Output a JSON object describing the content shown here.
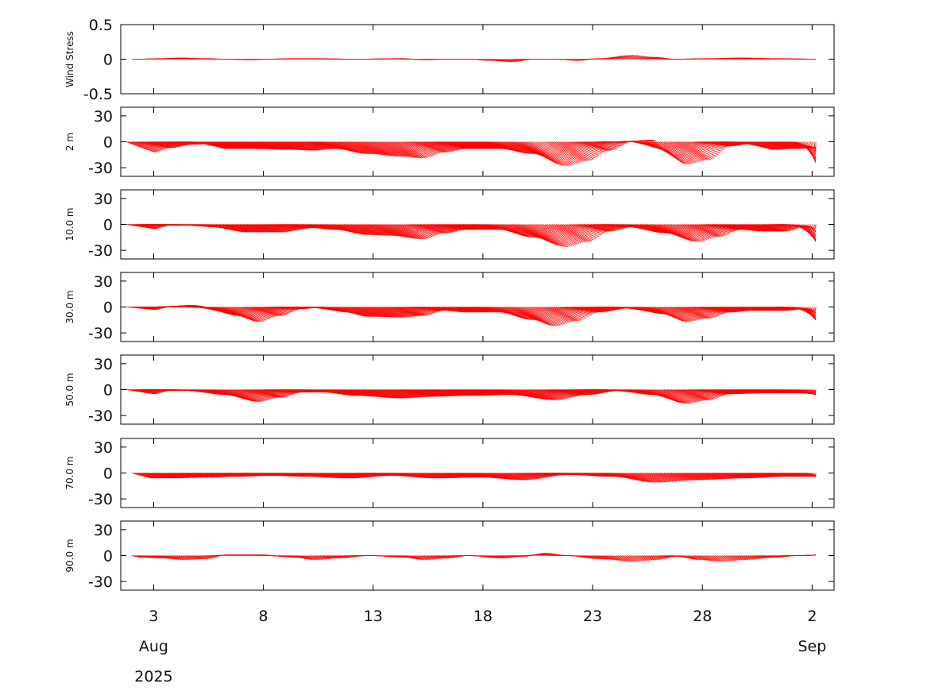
{
  "chart_data": {
    "type": "line",
    "subtype": "stick-vector-timeseries",
    "title": "",
    "series_color": "#ff0000",
    "x_axis": {
      "range": [
        "2025-08-01T12:00",
        "2025-09-03T00:00"
      ],
      "ticks": [
        {
          "date": "2025-08-03",
          "label": "3"
        },
        {
          "date": "2025-08-08",
          "label": "8"
        },
        {
          "date": "2025-08-13",
          "label": "13"
        },
        {
          "date": "2025-08-18",
          "label": "18"
        },
        {
          "date": "2025-08-23",
          "label": "23"
        },
        {
          "date": "2025-08-28",
          "label": "28"
        },
        {
          "date": "2025-09-02",
          "label": "2"
        }
      ],
      "month_labels": [
        {
          "date": "2025-08-03",
          "label": "Aug"
        },
        {
          "date": "2025-09-02",
          "label": "Sep"
        }
      ],
      "year_label": {
        "date": "2025-08-03",
        "label": "2025"
      }
    },
    "panels": [
      {
        "ylabel": "Wind Stress",
        "ylim": [
          -0.5,
          0.5
        ],
        "yticks": [
          {
            "v": 0.5,
            "label": "0.5"
          },
          {
            "v": 0,
            "label": "0"
          },
          {
            "v": -0.5,
            "label": "-0.5"
          }
        ],
        "t_start": "2025-08-02T00:00",
        "t_end": "2025-09-02T04:00",
        "tip_y": [
          [
            "2025-08-02T00:00",
            0
          ],
          [
            "2025-08-03T00:00",
            0.01
          ],
          [
            "2025-08-04T00:00",
            0.02
          ],
          [
            "2025-08-05T00:00",
            0.01
          ],
          [
            "2025-08-06T00:00",
            0.0
          ],
          [
            "2025-08-07T00:00",
            -0.01
          ],
          [
            "2025-08-08T00:00",
            0.0
          ],
          [
            "2025-08-09T00:00",
            0.01
          ],
          [
            "2025-08-10T00:00",
            0.01
          ],
          [
            "2025-08-12T00:00",
            0.0
          ],
          [
            "2025-08-14T00:00",
            0.01
          ],
          [
            "2025-08-15T00:00",
            -0.01
          ],
          [
            "2025-08-16T00:00",
            0.0
          ],
          [
            "2025-08-17T00:00",
            0.0
          ],
          [
            "2025-08-18T00:00",
            -0.02
          ],
          [
            "2025-08-19T00:00",
            -0.04
          ],
          [
            "2025-08-20T00:00",
            0.0
          ],
          [
            "2025-08-21T00:00",
            0.0
          ],
          [
            "2025-08-22T00:00",
            -0.02
          ],
          [
            "2025-08-23T00:00",
            0.01
          ],
          [
            "2025-08-24T12:00",
            0.06
          ],
          [
            "2025-08-25T12:00",
            0.03
          ],
          [
            "2025-08-26T12:00",
            0.0
          ],
          [
            "2025-08-28T00:00",
            0.01
          ],
          [
            "2025-08-29T12:00",
            0.02
          ],
          [
            "2025-08-31T00:00",
            0.01
          ],
          [
            "2025-09-02T04:00",
            0.0
          ]
        ],
        "shift_days": 0.35
      },
      {
        "ylabel": "2 m",
        "ylim": [
          -40,
          40
        ],
        "yticks": [
          {
            "v": 30,
            "label": "30"
          },
          {
            "v": 0,
            "label": "0"
          },
          {
            "v": -30,
            "label": "-30"
          }
        ],
        "t_start": "2025-08-01T18:00",
        "t_end": "2025-09-02T04:00",
        "tip_y": [
          [
            "2025-08-01T18:00",
            -12
          ],
          [
            "2025-08-02T12:00",
            -7
          ],
          [
            "2025-08-03T12:00",
            -3
          ],
          [
            "2025-08-04T12:00",
            -2
          ],
          [
            "2025-08-05T00:00",
            -8
          ],
          [
            "2025-08-06T00:00",
            -8
          ],
          [
            "2025-08-08T00:00",
            -9
          ],
          [
            "2025-08-09T00:00",
            -10
          ],
          [
            "2025-08-10T00:00",
            -8
          ],
          [
            "2025-08-11T12:00",
            -14
          ],
          [
            "2025-08-13T00:00",
            -17
          ],
          [
            "2025-08-14T00:00",
            -19
          ],
          [
            "2025-08-15T00:00",
            -12
          ],
          [
            "2025-08-16T00:00",
            -8
          ],
          [
            "2025-08-17T12:00",
            -8
          ],
          [
            "2025-08-19T00:00",
            -14
          ],
          [
            "2025-08-20T12:00",
            -28
          ],
          [
            "2025-08-21T12:00",
            -22
          ],
          [
            "2025-08-22T12:00",
            -10
          ],
          [
            "2025-08-23T12:00",
            0
          ],
          [
            "2025-08-24T12:00",
            2
          ],
          [
            "2025-08-25T00:00",
            -10
          ],
          [
            "2025-08-26T00:00",
            -26
          ],
          [
            "2025-08-27T00:00",
            -21
          ],
          [
            "2025-08-28T00:00",
            -5
          ],
          [
            "2025-08-29T00:00",
            -2
          ],
          [
            "2025-08-30T00:00",
            -9
          ],
          [
            "2025-08-31T00:00",
            -8
          ],
          [
            "2025-09-01T00:00",
            -7
          ],
          [
            "2025-09-01T18:00",
            -24
          ],
          [
            "2025-09-02T04:00",
            -10
          ]
        ],
        "shift_days": 1.3
      },
      {
        "ylabel": "10.0 m",
        "ylim": [
          -40,
          40
        ],
        "yticks": [
          {
            "v": 30,
            "label": "30"
          },
          {
            "v": 0,
            "label": "0"
          },
          {
            "v": -30,
            "label": "-30"
          }
        ],
        "t_start": "2025-08-01T18:00",
        "t_end": "2025-09-02T04:00",
        "tip_y": [
          [
            "2025-08-01T18:00",
            -5
          ],
          [
            "2025-08-02T12:00",
            -1
          ],
          [
            "2025-08-03T12:00",
            -1
          ],
          [
            "2025-08-04T12:00",
            -3
          ],
          [
            "2025-08-06T00:00",
            -9
          ],
          [
            "2025-08-07T12:00",
            -9
          ],
          [
            "2025-08-09T00:00",
            -4
          ],
          [
            "2025-08-10T00:00",
            -6
          ],
          [
            "2025-08-11T12:00",
            -12
          ],
          [
            "2025-08-12T12:00",
            -13
          ],
          [
            "2025-08-14T00:00",
            -17
          ],
          [
            "2025-08-15T00:00",
            -10
          ],
          [
            "2025-08-16T00:00",
            -6
          ],
          [
            "2025-08-17T12:00",
            -6
          ],
          [
            "2025-08-19T00:00",
            -15
          ],
          [
            "2025-08-20T12:00",
            -26
          ],
          [
            "2025-08-21T12:00",
            -20
          ],
          [
            "2025-08-22T12:00",
            -8
          ],
          [
            "2025-08-23T12:00",
            -3
          ],
          [
            "2025-08-25T00:00",
            -10
          ],
          [
            "2025-08-26T12:00",
            -20
          ],
          [
            "2025-08-27T12:00",
            -14
          ],
          [
            "2025-08-28T12:00",
            -6
          ],
          [
            "2025-08-29T12:00",
            -8
          ],
          [
            "2025-08-30T12:00",
            -8
          ],
          [
            "2025-08-31T12:00",
            -2
          ],
          [
            "2025-09-01T18:00",
            -20
          ],
          [
            "2025-09-02T04:00",
            -3
          ]
        ],
        "shift_days": 1.3
      },
      {
        "ylabel": "30.0 m",
        "ylim": [
          -40,
          40
        ],
        "yticks": [
          {
            "v": 30,
            "label": "30"
          },
          {
            "v": 0,
            "label": "0"
          },
          {
            "v": -30,
            "label": "-30"
          }
        ],
        "t_start": "2025-08-01T18:00",
        "t_end": "2025-09-02T04:00",
        "tip_y": [
          [
            "2025-08-01T18:00",
            -3
          ],
          [
            "2025-08-02T12:00",
            0
          ],
          [
            "2025-08-03T12:00",
            2
          ],
          [
            "2025-08-04T12:00",
            -1
          ],
          [
            "2025-08-05T12:00",
            -10
          ],
          [
            "2025-08-06T12:00",
            -17
          ],
          [
            "2025-08-07T12:00",
            -10
          ],
          [
            "2025-08-08T12:00",
            -2
          ],
          [
            "2025-08-09T12:00",
            0
          ],
          [
            "2025-08-10T12:00",
            -6
          ],
          [
            "2025-08-11T12:00",
            -11
          ],
          [
            "2025-08-13T00:00",
            -12
          ],
          [
            "2025-08-14T00:00",
            -10
          ],
          [
            "2025-08-15T00:00",
            -4
          ],
          [
            "2025-08-16T00:00",
            -6
          ],
          [
            "2025-08-17T12:00",
            -6
          ],
          [
            "2025-08-19T00:00",
            -15
          ],
          [
            "2025-08-20T00:00",
            -22
          ],
          [
            "2025-08-21T00:00",
            -16
          ],
          [
            "2025-08-22T00:00",
            -6
          ],
          [
            "2025-08-23T12:00",
            -1
          ],
          [
            "2025-08-25T00:00",
            -8
          ],
          [
            "2025-08-26T00:00",
            -17
          ],
          [
            "2025-08-27T00:00",
            -13
          ],
          [
            "2025-08-28T00:00",
            -6
          ],
          [
            "2025-08-29T00:00",
            -4
          ],
          [
            "2025-08-30T12:00",
            -4
          ],
          [
            "2025-08-31T12:00",
            -2
          ],
          [
            "2025-09-01T18:00",
            -15
          ],
          [
            "2025-09-02T04:00",
            -3
          ]
        ],
        "shift_days": 1.3
      },
      {
        "ylabel": "50.0 m",
        "ylim": [
          -40,
          40
        ],
        "yticks": [
          {
            "v": 30,
            "label": "30"
          },
          {
            "v": 0,
            "label": "0"
          },
          {
            "v": -30,
            "label": "-30"
          }
        ],
        "t_start": "2025-08-01T18:00",
        "t_end": "2025-09-02T04:00",
        "tip_y": [
          [
            "2025-08-01T18:00",
            -5
          ],
          [
            "2025-08-02T12:00",
            -1
          ],
          [
            "2025-08-03T12:00",
            -1
          ],
          [
            "2025-08-05T00:00",
            -6
          ],
          [
            "2025-08-06T12:00",
            -14
          ],
          [
            "2025-08-07T12:00",
            -9
          ],
          [
            "2025-08-08T12:00",
            -3
          ],
          [
            "2025-08-09T12:00",
            -3
          ],
          [
            "2025-08-11T00:00",
            -7
          ],
          [
            "2025-08-13T00:00",
            -10
          ],
          [
            "2025-08-14T12:00",
            -8
          ],
          [
            "2025-08-16T00:00",
            -7
          ],
          [
            "2025-08-18T00:00",
            -6
          ],
          [
            "2025-08-20T00:00",
            -12
          ],
          [
            "2025-08-21T12:00",
            -6
          ],
          [
            "2025-08-23T00:00",
            -1
          ],
          [
            "2025-08-24T12:00",
            -6
          ],
          [
            "2025-08-26T00:00",
            -16
          ],
          [
            "2025-08-27T00:00",
            -12
          ],
          [
            "2025-08-28T00:00",
            -5
          ],
          [
            "2025-08-29T12:00",
            -4
          ],
          [
            "2025-08-31T00:00",
            -4
          ],
          [
            "2025-09-01T12:00",
            -6
          ],
          [
            "2025-09-02T04:00",
            -2
          ]
        ],
        "shift_days": 1.3
      },
      {
        "ylabel": "70.0 m",
        "ylim": [
          -40,
          40
        ],
        "yticks": [
          {
            "v": 30,
            "label": "30"
          },
          {
            "v": 0,
            "label": "0"
          },
          {
            "v": -30,
            "label": "-30"
          }
        ],
        "t_start": "2025-08-02T00:00",
        "t_end": "2025-09-02T04:00",
        "tip_y": [
          [
            "2025-08-02T00:00",
            -6
          ],
          [
            "2025-08-03T00:00",
            -6
          ],
          [
            "2025-08-04T12:00",
            -5
          ],
          [
            "2025-08-06T00:00",
            -4
          ],
          [
            "2025-08-07T12:00",
            -3
          ],
          [
            "2025-08-09T00:00",
            -4
          ],
          [
            "2025-08-11T00:00",
            -6
          ],
          [
            "2025-08-13T00:00",
            -3
          ],
          [
            "2025-08-15T00:00",
            -6
          ],
          [
            "2025-08-17T00:00",
            -5
          ],
          [
            "2025-08-19T00:00",
            -8
          ],
          [
            "2025-08-21T00:00",
            -2
          ],
          [
            "2025-08-23T00:00",
            -4
          ],
          [
            "2025-08-25T00:00",
            -11
          ],
          [
            "2025-08-27T00:00",
            -8
          ],
          [
            "2025-08-29T00:00",
            -6
          ],
          [
            "2025-08-31T00:00",
            -4
          ],
          [
            "2025-09-02T04:00",
            -4
          ]
        ],
        "shift_days": 0.9
      },
      {
        "ylabel": "90.0 m",
        "ylim": [
          -40,
          40
        ],
        "yticks": [
          {
            "v": 30,
            "label": "30"
          },
          {
            "v": 0,
            "label": "0"
          },
          {
            "v": -30,
            "label": "-30"
          }
        ],
        "t_start": "2025-08-02T00:00",
        "t_end": "2025-09-02T04:00",
        "tip_y": [
          [
            "2025-08-02T00:00",
            -2
          ],
          [
            "2025-08-03T00:00",
            -3
          ],
          [
            "2025-08-04T00:00",
            -5
          ],
          [
            "2025-08-05T00:00",
            -4
          ],
          [
            "2025-08-06T00:00",
            1
          ],
          [
            "2025-08-07T12:00",
            1
          ],
          [
            "2025-08-09T00:00",
            -2
          ],
          [
            "2025-08-10T00:00",
            -5
          ],
          [
            "2025-08-11T00:00",
            -3
          ],
          [
            "2025-08-12T12:00",
            0
          ],
          [
            "2025-08-14T00:00",
            -2
          ],
          [
            "2025-08-15T00:00",
            -5
          ],
          [
            "2025-08-16T00:00",
            -3
          ],
          [
            "2025-08-17T00:00",
            0
          ],
          [
            "2025-08-18T12:00",
            -3
          ],
          [
            "2025-08-19T12:00",
            -1
          ],
          [
            "2025-08-20T12:00",
            3
          ],
          [
            "2025-08-21T12:00",
            0
          ],
          [
            "2025-08-23T00:00",
            -4
          ],
          [
            "2025-08-24T12:00",
            -7
          ],
          [
            "2025-08-25T12:00",
            -5
          ],
          [
            "2025-08-26T12:00",
            -1
          ],
          [
            "2025-08-27T12:00",
            -5
          ],
          [
            "2025-08-28T12:00",
            -7
          ],
          [
            "2025-08-29T12:00",
            -5
          ],
          [
            "2025-08-31T00:00",
            -2
          ],
          [
            "2025-09-01T00:00",
            0
          ],
          [
            "2025-09-02T04:00",
            1
          ]
        ],
        "shift_days": 0.4
      }
    ]
  }
}
